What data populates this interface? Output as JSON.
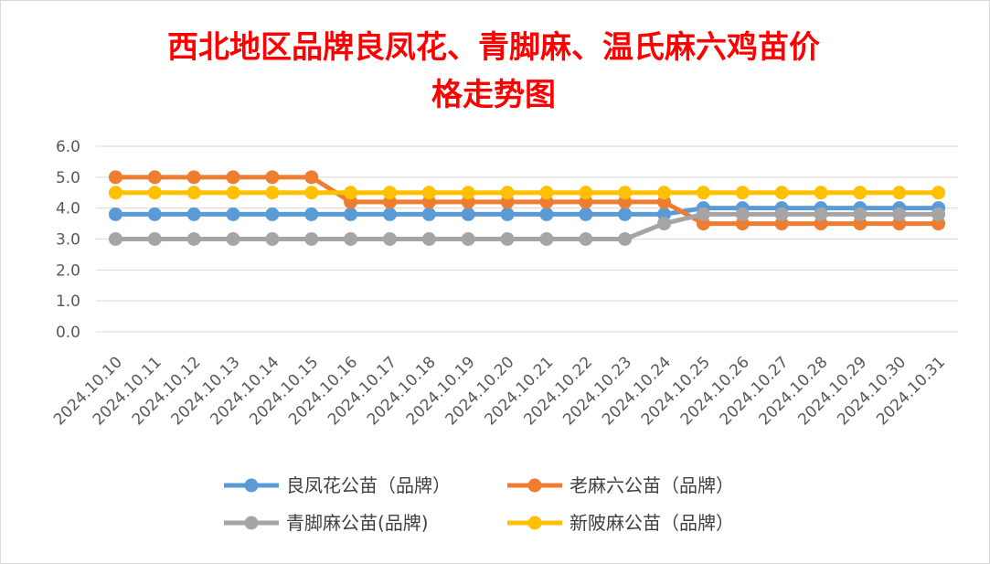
{
  "chart_data": {
    "type": "line",
    "title": "西北地区品牌良凤花、青脚麻、温氏麻六鸡苗价格走势图",
    "title_lines": [
      "西北地区品牌良凤花、青脚麻、温氏麻六鸡苗价",
      "格走势图"
    ],
    "categories": [
      "2024.10.10",
      "2024.10.11",
      "2024.10.12",
      "2024.10.13",
      "2024.10.14",
      "2024.10.15",
      "2024.10.16",
      "2024.10.17",
      "2024.10.18",
      "2024.10.19",
      "2024.10.20",
      "2024.10.21",
      "2024.10.22",
      "2024.10.23",
      "2024.10.24",
      "2024.10.25",
      "2024.10.26",
      "2024.10.27",
      "2024.10.28",
      "2024.10.29",
      "2024.10.30",
      "2024.10.31"
    ],
    "ylim": [
      0,
      6
    ],
    "yticks": [
      "0.0",
      "1.0",
      "2.0",
      "3.0",
      "4.0",
      "5.0",
      "6.0"
    ],
    "grid": true,
    "legend_position": "bottom",
    "series": [
      {
        "name": "良凤花公苗（品牌）",
        "color": "#5b9bd5",
        "values": [
          3.8,
          3.8,
          3.8,
          3.8,
          3.8,
          3.8,
          3.8,
          3.8,
          3.8,
          3.8,
          3.8,
          3.8,
          3.8,
          3.8,
          3.8,
          4.0,
          4.0,
          4.0,
          4.0,
          4.0,
          4.0,
          4.0
        ]
      },
      {
        "name": "老麻六公苗（品牌）",
        "color": "#ed7d31",
        "values": [
          5.0,
          5.0,
          5.0,
          5.0,
          5.0,
          5.0,
          4.2,
          4.2,
          4.2,
          4.2,
          4.2,
          4.2,
          4.2,
          4.2,
          4.2,
          3.5,
          3.5,
          3.5,
          3.5,
          3.5,
          3.5,
          3.5
        ]
      },
      {
        "name": "青脚麻公苗(品牌)",
        "color": "#a5a5a5",
        "values": [
          3.0,
          3.0,
          3.0,
          3.0,
          3.0,
          3.0,
          3.0,
          3.0,
          3.0,
          3.0,
          3.0,
          3.0,
          3.0,
          3.0,
          3.5,
          3.8,
          3.8,
          3.8,
          3.8,
          3.8,
          3.8,
          3.8
        ]
      },
      {
        "name": "新陂麻公苗（品牌）",
        "color": "#ffc000",
        "values": [
          4.5,
          4.5,
          4.5,
          4.5,
          4.5,
          4.5,
          4.5,
          4.5,
          4.5,
          4.5,
          4.5,
          4.5,
          4.5,
          4.5,
          4.5,
          4.5,
          4.5,
          4.5,
          4.5,
          4.5,
          4.5,
          4.5
        ]
      }
    ]
  }
}
